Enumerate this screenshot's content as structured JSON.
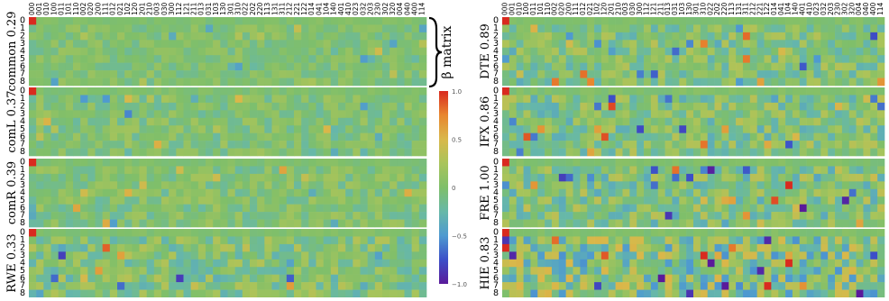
{
  "figure": {
    "beta_label": "β matrix",
    "colorbar": {
      "ticks": [
        "1.0",
        "0.5",
        "0",
        "−0.5",
        "−1.0"
      ],
      "vmin": -1.0,
      "vmax": 1.0
    }
  },
  "columns": [
    "000",
    "001",
    "010",
    "100",
    "011",
    "101",
    "110",
    "002",
    "020",
    "200",
    "111",
    "012",
    "021",
    "102",
    "120",
    "201",
    "210",
    "003",
    "030",
    "300",
    "112",
    "121",
    "211",
    "013",
    "031",
    "103",
    "130",
    "301",
    "310",
    "022",
    "202",
    "220",
    "113",
    "131",
    "311",
    "212",
    "221",
    "122",
    "014",
    "041",
    "104",
    "140",
    "401",
    "410",
    "023",
    "032",
    "203",
    "230",
    "302",
    "320",
    "004",
    "040",
    "400",
    "114"
  ],
  "column_labels_left": [
    "000",
    "001",
    "010",
    "100",
    "011",
    "101",
    "110",
    "002",
    "020",
    "200",
    "111",
    "012",
    "021",
    "102",
    "120",
    "201",
    "210",
    "003",
    "030",
    "300",
    "211",
    "121",
    "112",
    "201",
    "021",
    "012",
    "031",
    "103",
    "130",
    "301",
    "310",
    "220",
    "202",
    "022",
    "103",
    "310",
    "220",
    "211",
    "121",
    "112",
    "131",
    "113",
    "311",
    "212",
    "221",
    "122",
    "013",
    "031",
    "103",
    "130",
    "300",
    "040",
    "400",
    "140"
  ],
  "rows": [
    "0",
    "1",
    "2",
    "3",
    "4",
    "5",
    "6",
    "7",
    "8"
  ],
  "panels": [
    {
      "label": "common 0.29",
      "side": "left"
    },
    {
      "label": "comL 0.37",
      "side": "left"
    },
    {
      "label": "comR 0.39",
      "side": "left"
    },
    {
      "label": "RWE 0.33",
      "side": "left"
    },
    {
      "label": "DTE 0.89",
      "side": "right"
    },
    {
      "label": "IFX 0.86",
      "side": "right"
    },
    {
      "label": "FRE 1.00",
      "side": "right"
    },
    {
      "label": "HIE 0.83",
      "side": "right"
    }
  ],
  "chart_data": {
    "type": "heatmap",
    "value_range": [
      -1.0,
      1.0
    ],
    "colormap": [
      "#5a1a9a",
      "#3c4fc8",
      "#4e9ad0",
      "#67b8a8",
      "#7fbf6a",
      "#a9c45a",
      "#d9b84a",
      "#e8862e",
      "#d92a1f"
    ],
    "fixed_cells": [
      {
        "row": 0,
        "col": 0,
        "value": 1.0
      }
    ]
  }
}
